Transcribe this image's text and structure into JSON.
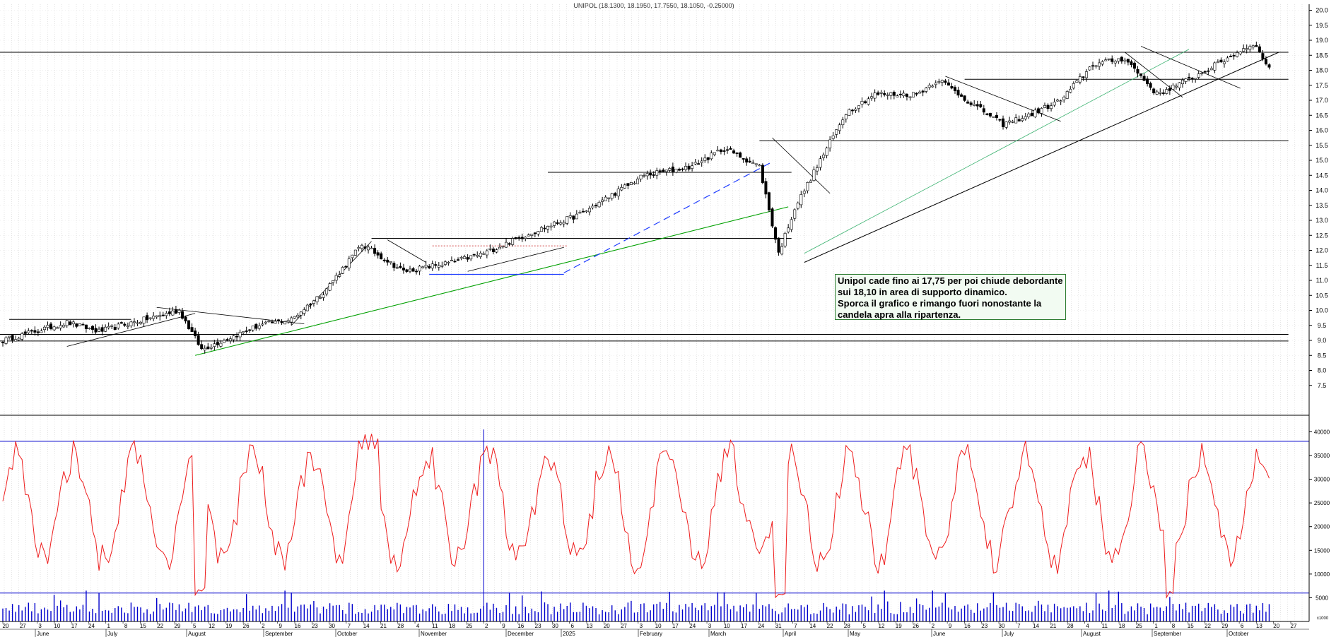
{
  "chart_data": {
    "type": "candlestick",
    "title": "UNIPOL (18.1300, 18.1950, 17.7550, 18.1050, -0.25000)",
    "price_axis": {
      "ylim": [
        7.4,
        20.2
      ],
      "ticks": [
        "7.5",
        "8.0",
        "8.5",
        "9.0",
        "9.5",
        "10.0",
        "10.5",
        "11.0",
        "11.5",
        "12.0",
        "12.5",
        "13.0",
        "13.5",
        "14.0",
        "14.5",
        "15.0",
        "15.5",
        "16.0",
        "16.5",
        "17.0",
        "17.5",
        "18.0",
        "18.5",
        "19.0",
        "19.5",
        "20.0"
      ]
    },
    "oscillator_axis": {
      "ylim": [
        0,
        42000
      ],
      "ticks": [
        "5000",
        "10000",
        "15000",
        "20000",
        "25000",
        "30000",
        "35000",
        "40000"
      ],
      "bottom_label": "x1000"
    },
    "x_axis": {
      "day_labels": [
        "20",
        "27",
        "3",
        "10",
        "17",
        "24",
        "1",
        "8",
        "15",
        "22",
        "29",
        "5",
        "12",
        "19",
        "26",
        "2",
        "9",
        "16",
        "23",
        "30",
        "7",
        "14",
        "21",
        "28",
        "4",
        "11",
        "18",
        "25",
        "2",
        "9",
        "16",
        "23",
        "30",
        "6",
        "13",
        "20",
        "27",
        "3",
        "10",
        "17",
        "24",
        "3",
        "10",
        "17",
        "24",
        "31",
        "7",
        "14",
        "22",
        "28",
        "5",
        "12",
        "19",
        "26",
        "2",
        "9",
        "16",
        "23",
        "30",
        "7",
        "14",
        "21",
        "28",
        "4",
        "11",
        "18",
        "25",
        "1",
        "8",
        "15",
        "22",
        "29",
        "6",
        "13",
        "20",
        "27"
      ],
      "month_labels": [
        "June",
        "July",
        "August",
        "September",
        "October",
        "November",
        "December",
        "2025",
        "February",
        "March",
        "April",
        "May",
        "June",
        "July",
        "August",
        "September",
        "October"
      ]
    },
    "price_checkpoints": [
      {
        "day": 0,
        "close": 9.0
      },
      {
        "day": 20,
        "close": 9.6
      },
      {
        "day": 30,
        "close": 9.3
      },
      {
        "day": 55,
        "close": 10.0
      },
      {
        "day": 62,
        "close": 8.7
      },
      {
        "day": 80,
        "close": 9.5
      },
      {
        "day": 90,
        "close": 9.7
      },
      {
        "day": 100,
        "close": 10.6
      },
      {
        "day": 112,
        "close": 12.2
      },
      {
        "day": 125,
        "close": 11.3
      },
      {
        "day": 140,
        "close": 11.6
      },
      {
        "day": 150,
        "close": 11.9
      },
      {
        "day": 165,
        "close": 12.6
      },
      {
        "day": 180,
        "close": 13.2
      },
      {
        "day": 200,
        "close": 14.5
      },
      {
        "day": 215,
        "close": 14.8
      },
      {
        "day": 225,
        "close": 15.4
      },
      {
        "day": 236,
        "close": 14.8
      },
      {
        "day": 242,
        "close": 11.9
      },
      {
        "day": 247,
        "close": 13.4
      },
      {
        "day": 258,
        "close": 15.6
      },
      {
        "day": 263,
        "close": 16.6
      },
      {
        "day": 272,
        "close": 17.2
      },
      {
        "day": 285,
        "close": 17.2
      },
      {
        "day": 292,
        "close": 17.7
      },
      {
        "day": 302,
        "close": 16.9
      },
      {
        "day": 312,
        "close": 16.2
      },
      {
        "day": 320,
        "close": 16.5
      },
      {
        "day": 330,
        "close": 17.0
      },
      {
        "day": 340,
        "close": 18.2
      },
      {
        "day": 350,
        "close": 18.4
      },
      {
        "day": 360,
        "close": 17.2
      },
      {
        "day": 372,
        "close": 17.8
      },
      {
        "day": 382,
        "close": 18.4
      },
      {
        "day": 390,
        "close": 18.9
      },
      {
        "day": 395,
        "close": 18.1
      }
    ],
    "oscillator_series": {
      "color": "#ee1c1c"
    },
    "volume_series": {
      "color": "#0000cc"
    }
  },
  "annotation": {
    "text": "Unipol cade fino ai 17,75 per poi chiude debordante sui 18,10 in area di supporto dinamico.\nSporca il grafico e rimango fuori nonostante la candela apra alla ripartenza."
  },
  "colors": {
    "support_lines": "#000000",
    "trend_green": "#00a000",
    "trend_light_green": "#3cb371",
    "trend_blue_dash": "#1e3cff",
    "oscillator": "#ee1c1c",
    "levels_blue": "#0000cc"
  }
}
